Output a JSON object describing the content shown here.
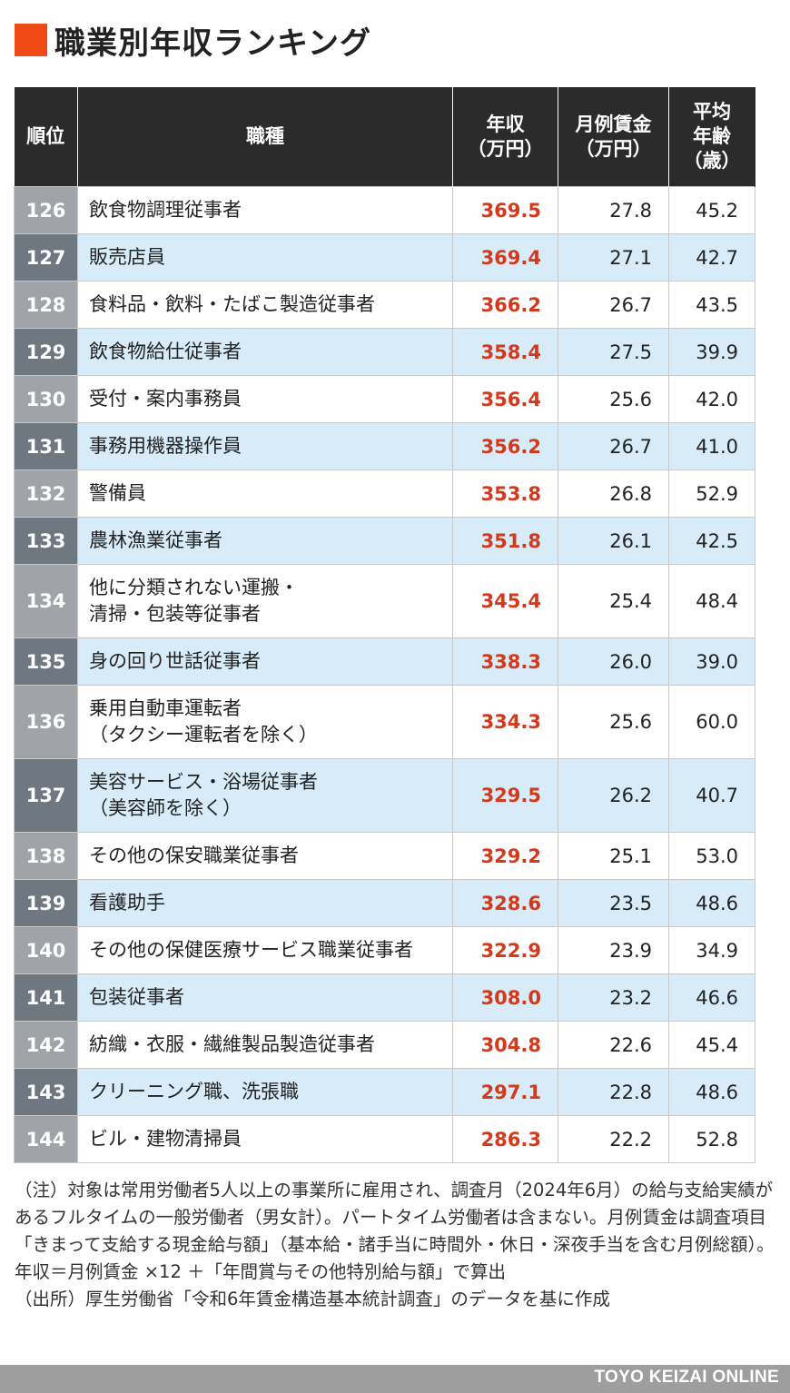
{
  "title": "職業別年収ランキング",
  "headers": {
    "rank": "順位",
    "job": "職種",
    "income": "年収\n（万円）",
    "monthly": "月例賃金\n（万円）",
    "age": "平均\n年齢\n（歳）"
  },
  "rows": [
    {
      "rank": "126",
      "job": "飲食物調理従事者",
      "income": "369.5",
      "monthly": "27.8",
      "age": "45.2"
    },
    {
      "rank": "127",
      "job": "販売店員",
      "income": "369.4",
      "monthly": "27.1",
      "age": "42.7"
    },
    {
      "rank": "128",
      "job": "食料品・飲料・たばこ製造従事者",
      "income": "366.2",
      "monthly": "26.7",
      "age": "43.5"
    },
    {
      "rank": "129",
      "job": "飲食物給仕従事者",
      "income": "358.4",
      "monthly": "27.5",
      "age": "39.9"
    },
    {
      "rank": "130",
      "job": "受付・案内事務員",
      "income": "356.4",
      "monthly": "25.6",
      "age": "42.0"
    },
    {
      "rank": "131",
      "job": "事務用機器操作員",
      "income": "356.2",
      "monthly": "26.7",
      "age": "41.0"
    },
    {
      "rank": "132",
      "job": "警備員",
      "income": "353.8",
      "monthly": "26.8",
      "age": "52.9"
    },
    {
      "rank": "133",
      "job": "農林漁業従事者",
      "income": "351.8",
      "monthly": "26.1",
      "age": "42.5"
    },
    {
      "rank": "134",
      "job": "他に分類されない運搬・\n清掃・包装等従事者",
      "income": "345.4",
      "monthly": "25.4",
      "age": "48.4"
    },
    {
      "rank": "135",
      "job": "身の回り世話従事者",
      "income": "338.3",
      "monthly": "26.0",
      "age": "39.0"
    },
    {
      "rank": "136",
      "job": "乗用自動車運転者\n（タクシー運転者を除く）",
      "income": "334.3",
      "monthly": "25.6",
      "age": "60.0"
    },
    {
      "rank": "137",
      "job": "美容サービス・浴場従事者\n（美容師を除く）",
      "income": "329.5",
      "monthly": "26.2",
      "age": "40.7"
    },
    {
      "rank": "138",
      "job": "その他の保安職業従事者",
      "income": "329.2",
      "monthly": "25.1",
      "age": "53.0"
    },
    {
      "rank": "139",
      "job": "看護助手",
      "income": "328.6",
      "monthly": "23.5",
      "age": "48.6"
    },
    {
      "rank": "140",
      "job": "その他の保健医療サービス職業従事者",
      "income": "322.9",
      "monthly": "23.9",
      "age": "34.9"
    },
    {
      "rank": "141",
      "job": "包装従事者",
      "income": "308.0",
      "monthly": "23.2",
      "age": "46.6"
    },
    {
      "rank": "142",
      "job": "紡織・衣服・繊維製品製造従事者",
      "income": "304.8",
      "monthly": "22.6",
      "age": "45.4"
    },
    {
      "rank": "143",
      "job": "クリーニング職、洗張職",
      "income": "297.1",
      "monthly": "22.8",
      "age": "48.6"
    },
    {
      "rank": "144",
      "job": "ビル・建物清掃員",
      "income": "286.3",
      "monthly": "22.2",
      "age": "52.8"
    }
  ],
  "notes": [
    "（注）対象は常用労働者5人以上の事業所に雇用され、調査月（2024年6月）の給与支給実績があるフルタイムの一般労働者（男女計）。パートタイム労働者は含まない。月例賃金は調査項目「きまって支給する現金給与額」（基本給・諸手当に時間外・休日・深夜手当を含む月例総額）。年収＝月例賃金 ×12 ＋「年間賞与その他特別給与額」で算出",
    "（出所）厚生労働省「令和6年賃金構造基本統計調査」のデータを基に作成"
  ],
  "footer": "TOYO KEIZAI ONLINE",
  "colors": {
    "accent": "#f04a16",
    "header_bg": "#2b2b2b",
    "income_text": "#d4391c",
    "row_alt_bg": "#d7ecf8",
    "rank_light": "#a0a4a8",
    "rank_dark": "#6f7780",
    "footer_bg": "#9e9e9e"
  }
}
